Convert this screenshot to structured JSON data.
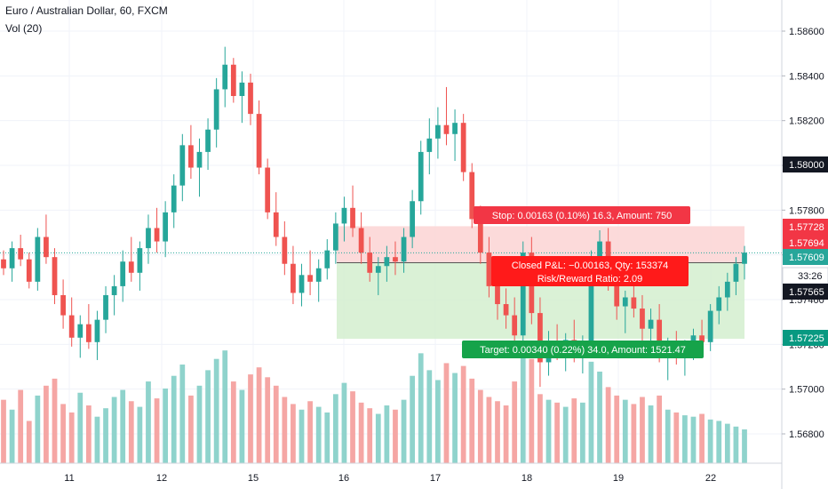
{
  "chart_data": {
    "type": "candlestick",
    "title": "Euro / Australian Dollar, 60, FXCM",
    "indicator": "Vol (20)",
    "y_axis": {
      "ticks": [
        1.586,
        1.584,
        1.582,
        1.58,
        1.578,
        1.576,
        1.574,
        1.572,
        1.57,
        1.568
      ],
      "tick_labels": [
        "1.58600",
        "1.58400",
        "1.58200",
        "1.58000",
        "1.57800",
        "1.57600",
        "1.57400",
        "1.57200",
        "1.57000",
        "1.56800"
      ],
      "range": [
        1.56633,
        1.58853
      ]
    },
    "x_axis": {
      "tick_labels": [
        "11",
        "12",
        "15",
        "16",
        "17",
        "18",
        "19",
        "22"
      ]
    },
    "price_badges": [
      {
        "label": "1.58000",
        "value": 1.58,
        "color": "#131722"
      },
      {
        "label": "1.57728",
        "value": 1.57728,
        "color": "#f23645"
      },
      {
        "label": "1.57694",
        "value": 1.57694,
        "color": "#f23645"
      },
      {
        "label": "1.57609",
        "value": 1.57609,
        "color": "#26a69a"
      },
      {
        "label": "33:26",
        "value": 1.57565,
        "color": "#ffffff"
      },
      {
        "label": "1.57565",
        "value": 1.57565,
        "color": "#131722"
      },
      {
        "label": "1.57225",
        "value": 1.57225,
        "color": "#089981"
      }
    ],
    "position": {
      "entry": 1.57565,
      "stop": 1.57728,
      "target": 1.57225,
      "stop_label": "Stop: 0.00163 (0.10%) 16.3, Amount: 750",
      "pnl_label": "Closed P&L: −0.00163, Qty: 153374",
      "rr_label": "Risk/Reward Ratio: 2.09",
      "target_label": "Target: 0.00340 (0.22%) 34.0, Amount: 1521.47"
    },
    "colors": {
      "up": "#26a69a",
      "down": "#ef5350",
      "up_volume": "#8fd3cc",
      "down_volume": "#f5a6a4",
      "stop_zone": "#fbd3d3",
      "target_zone": "#d3efcf",
      "grid": "#f0f3fa"
    },
    "current_price": 1.57609,
    "candles": [
      [
        1.5758,
        1.5762,
        1.5751,
        1.5754
      ],
      [
        1.5754,
        1.5766,
        1.5748,
        1.5763
      ],
      [
        1.5763,
        1.5769,
        1.5755,
        1.5758
      ],
      [
        1.5758,
        1.5761,
        1.5745,
        1.5748
      ],
      [
        1.5748,
        1.5772,
        1.5744,
        1.5768
      ],
      [
        1.5768,
        1.5778,
        1.5756,
        1.5759
      ],
      [
        1.5759,
        1.5763,
        1.5738,
        1.5742
      ],
      [
        1.5742,
        1.5749,
        1.5727,
        1.5733
      ],
      [
        1.5733,
        1.5741,
        1.5719,
        1.5723
      ],
      [
        1.5723,
        1.5733,
        1.5714,
        1.5729
      ],
      [
        1.5729,
        1.5738,
        1.5718,
        1.5721
      ],
      [
        1.5721,
        1.5735,
        1.5713,
        1.5731
      ],
      [
        1.5731,
        1.5746,
        1.5725,
        1.5742
      ],
      [
        1.5742,
        1.5751,
        1.5733,
        1.5746
      ],
      [
        1.5746,
        1.5762,
        1.5739,
        1.5757
      ],
      [
        1.5757,
        1.5768,
        1.5748,
        1.5752
      ],
      [
        1.5752,
        1.5766,
        1.5744,
        1.5763
      ],
      [
        1.5763,
        1.5778,
        1.5756,
        1.5772
      ],
      [
        1.5772,
        1.5781,
        1.5761,
        1.5766
      ],
      [
        1.5766,
        1.5784,
        1.5759,
        1.5779
      ],
      [
        1.5779,
        1.5796,
        1.5772,
        1.5791
      ],
      [
        1.5791,
        1.5814,
        1.5784,
        1.5809
      ],
      [
        1.5809,
        1.5818,
        1.5794,
        1.5799
      ],
      [
        1.5799,
        1.5812,
        1.5786,
        1.5806
      ],
      [
        1.5806,
        1.5821,
        1.5798,
        1.5816
      ],
      [
        1.5816,
        1.5839,
        1.5808,
        1.5834
      ],
      [
        1.5834,
        1.5853,
        1.5826,
        1.5845
      ],
      [
        1.5845,
        1.5848,
        1.5828,
        1.5831
      ],
      [
        1.5831,
        1.5842,
        1.5819,
        1.5837
      ],
      [
        1.5837,
        1.5841,
        1.5818,
        1.5823
      ],
      [
        1.5823,
        1.5829,
        1.5796,
        1.5799
      ],
      [
        1.5799,
        1.5803,
        1.5776,
        1.5779
      ],
      [
        1.5779,
        1.5788,
        1.5764,
        1.5768
      ],
      [
        1.5768,
        1.5775,
        1.5751,
        1.5756
      ],
      [
        1.5756,
        1.5764,
        1.5738,
        1.5743
      ],
      [
        1.5743,
        1.5756,
        1.5737,
        1.5751
      ],
      [
        1.5751,
        1.5762,
        1.5742,
        1.5748
      ],
      [
        1.5748,
        1.5758,
        1.5739,
        1.5754
      ],
      [
        1.5754,
        1.5767,
        1.5749,
        1.5762
      ],
      [
        1.5762,
        1.5779,
        1.5756,
        1.5774
      ],
      [
        1.5774,
        1.5786,
        1.5766,
        1.5781
      ],
      [
        1.5781,
        1.5791,
        1.5768,
        1.5772
      ],
      [
        1.5772,
        1.5779,
        1.5756,
        1.5761
      ],
      [
        1.5761,
        1.5768,
        1.5748,
        1.5752
      ],
      [
        1.5752,
        1.5759,
        1.5742,
        1.5755
      ],
      [
        1.5755,
        1.5764,
        1.5748,
        1.5759
      ],
      [
        1.5759,
        1.5766,
        1.5751,
        1.5757
      ],
      [
        1.5757,
        1.5772,
        1.5752,
        1.5768
      ],
      [
        1.5768,
        1.5789,
        1.5763,
        1.5784
      ],
      [
        1.5784,
        1.5811,
        1.5778,
        1.5806
      ],
      [
        1.5806,
        1.5821,
        1.5796,
        1.5812
      ],
      [
        1.5812,
        1.5826,
        1.5803,
        1.5818
      ],
      [
        1.5818,
        1.5835,
        1.5809,
        1.5814
      ],
      [
        1.5814,
        1.5825,
        1.5802,
        1.5819
      ],
      [
        1.5819,
        1.5823,
        1.5793,
        1.5797
      ],
      [
        1.5797,
        1.5801,
        1.5772,
        1.5776
      ],
      [
        1.5776,
        1.5782,
        1.5756,
        1.5761
      ],
      [
        1.5761,
        1.5768,
        1.5741,
        1.5746
      ],
      [
        1.5746,
        1.5752,
        1.5731,
        1.5738
      ],
      [
        1.5738,
        1.5745,
        1.5727,
        1.5733
      ],
      [
        1.5733,
        1.5741,
        1.5718,
        1.5724
      ],
      [
        1.5724,
        1.5766,
        1.5719,
        1.5761
      ],
      [
        1.5761,
        1.5768,
        1.5729,
        1.5734
      ],
      [
        1.5734,
        1.5741,
        1.5701,
        1.5712
      ],
      [
        1.5712,
        1.5726,
        1.5706,
        1.5721
      ],
      [
        1.5721,
        1.5729,
        1.5713,
        1.5717
      ],
      [
        1.5717,
        1.5725,
        1.5708,
        1.5722
      ],
      [
        1.5722,
        1.5731,
        1.5712,
        1.5716
      ],
      [
        1.5716,
        1.5724,
        1.5707,
        1.5719
      ],
      [
        1.5719,
        1.5762,
        1.5715,
        1.5756
      ],
      [
        1.5756,
        1.5771,
        1.5749,
        1.5766
      ],
      [
        1.5766,
        1.5772,
        1.5744,
        1.5748
      ],
      [
        1.5748,
        1.5756,
        1.5731,
        1.5737
      ],
      [
        1.5737,
        1.5744,
        1.5725,
        1.5741
      ],
      [
        1.5741,
        1.5749,
        1.5732,
        1.5736
      ],
      [
        1.5736,
        1.5742,
        1.5721,
        1.5727
      ],
      [
        1.5727,
        1.5736,
        1.5718,
        1.5731
      ],
      [
        1.5731,
        1.5738,
        1.5712,
        1.5716
      ],
      [
        1.5716,
        1.5723,
        1.5704,
        1.5719
      ],
      [
        1.5719,
        1.5726,
        1.5711,
        1.5714
      ],
      [
        1.5714,
        1.5722,
        1.5706,
        1.5718
      ],
      [
        1.5718,
        1.5727,
        1.5713,
        1.5724
      ],
      [
        1.5724,
        1.5731,
        1.5716,
        1.5721
      ],
      [
        1.5721,
        1.5738,
        1.5717,
        1.5735
      ],
      [
        1.5735,
        1.5746,
        1.5729,
        1.5741
      ],
      [
        1.5741,
        1.5752,
        1.5735,
        1.5748
      ],
      [
        1.5748,
        1.5759,
        1.5742,
        1.5756
      ],
      [
        1.5756,
        1.5764,
        1.5749,
        1.5761
      ]
    ],
    "volumes": [
      45,
      38,
      52,
      30,
      48,
      55,
      60,
      42,
      36,
      50,
      41,
      33,
      39,
      47,
      52,
      44,
      40,
      58,
      46,
      53,
      62,
      70,
      48,
      55,
      66,
      74,
      80,
      58,
      52,
      63,
      68,
      61,
      55,
      47,
      42,
      38,
      44,
      40,
      36,
      49,
      57,
      51,
      43,
      39,
      35,
      41,
      38,
      45,
      62,
      78,
      66,
      59,
      71,
      64,
      69,
      60,
      52,
      47,
      44,
      41,
      58,
      82,
      74,
      49,
      45,
      43,
      40,
      46,
      43,
      72,
      65,
      54,
      48,
      45,
      42,
      47,
      41,
      48,
      38,
      36,
      34,
      33,
      35,
      31,
      30,
      28,
      26,
      24
    ]
  }
}
